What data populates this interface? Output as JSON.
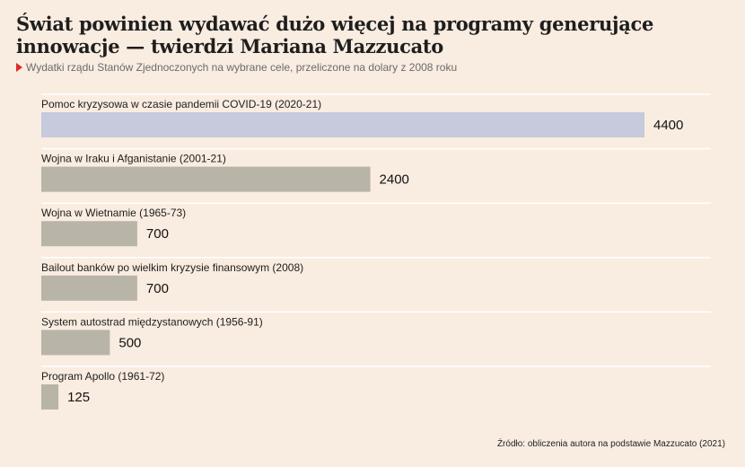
{
  "header": {
    "title": "Świat powinien wydawać dużo więcej na programy generujące innowacje — twierdzi Mariana Mazzucato",
    "subtitle": "Wydatki rządu Stanów Zjednoczonych na wybrane cele, przeliczone na dolary z 2008 roku"
  },
  "footer": {
    "source": "Źródło: obliczenia autora na podstawie Mazzucato (2021)"
  },
  "colors": {
    "highlight_bar": "#c5cadc",
    "default_bar": "#b8b4a8",
    "gridline": "#ffffff",
    "subtitle_marker": "#d92b2b"
  },
  "chart_data": {
    "type": "bar",
    "orientation": "horizontal",
    "title": "Świat powinien wydawać dużo więcej na programy generujące innowacje — twierdzi Mariana Mazzucato",
    "subtitle": "Wydatki rządu Stanów Zjednoczonych na wybrane cele, przeliczone na dolary z 2008 roku",
    "categories": [
      "Pomoc kryzysowa w czasie pandemii COVID-19 (2020-21)",
      "Wojna w Iraku i Afganistanie (2001-21)",
      "Wojna w Wietnamie (1965-73)",
      "Bailout banków po wielkim kryzysie finansowym (2008)",
      "System autostrad międzystanowych (1956-91)",
      "Program Apollo (1961-72)"
    ],
    "values": [
      4400,
      2400,
      700,
      700,
      500,
      125
    ],
    "value_labels": [
      "4400",
      "2400",
      "700",
      "700",
      "500",
      "125"
    ],
    "highlighted": [
      true,
      false,
      false,
      false,
      false,
      false
    ],
    "xlim": [
      0,
      4400
    ],
    "grid": true,
    "legend": "none",
    "source": "Źródło: obliczenia autora na podstawie Mazzucato (2021)"
  }
}
